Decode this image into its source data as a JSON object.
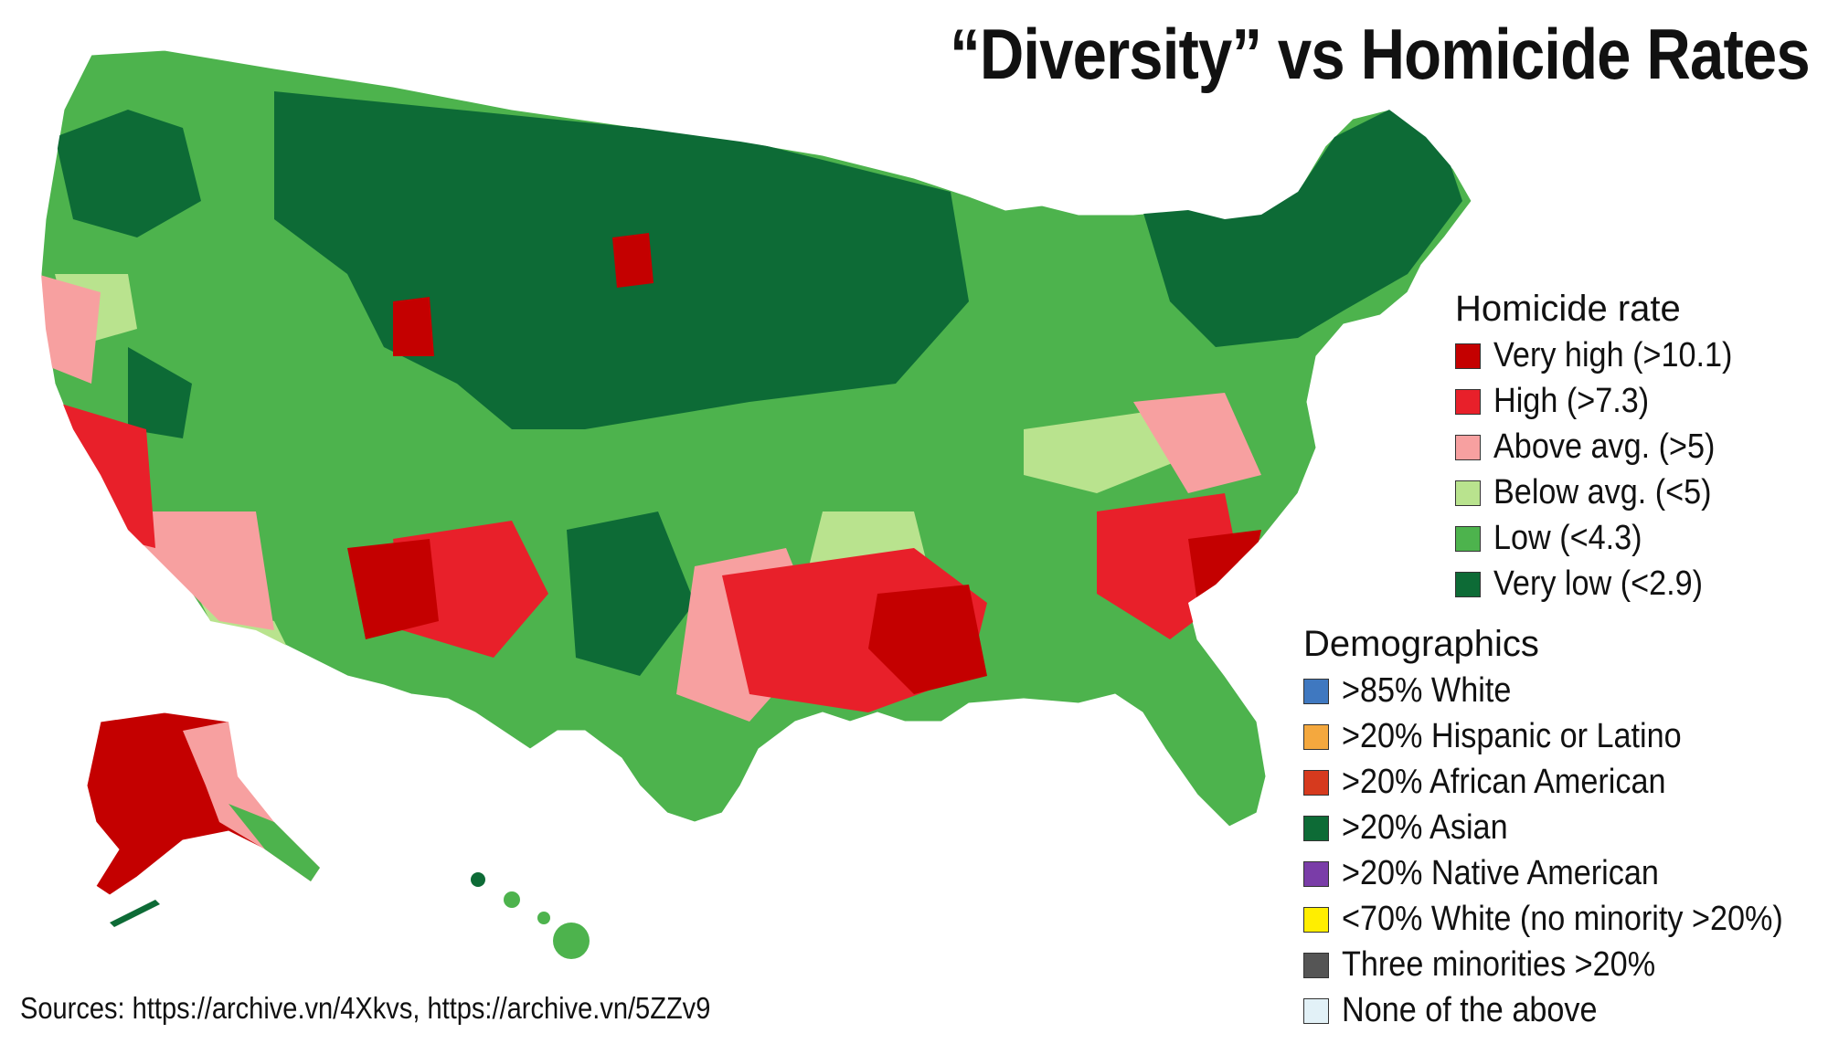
{
  "title": "“Diversity” vs Homicide Rates",
  "homicide_legend": {
    "title": "Homicide rate",
    "items": [
      {
        "label": "Very high (>10.1)",
        "color": "#c40000"
      },
      {
        "label": "High (>7.3)",
        "color": "#e8202a"
      },
      {
        "label": "Above avg. (>5)",
        "color": "#f7a0a0"
      },
      {
        "label": "Below avg. (<5)",
        "color": "#b9e38e"
      },
      {
        "label": "Low (<4.3)",
        "color": "#4db34d"
      },
      {
        "label": "Very low (<2.9)",
        "color": "#0d6b36"
      }
    ]
  },
  "demographics_legend": {
    "title": "Demographics",
    "items": [
      {
        "label": ">85% White",
        "color": "#3f78c0"
      },
      {
        "label": ">20% Hispanic or Latino",
        "color": "#f4a83e"
      },
      {
        "label": ">20% African American",
        "color": "#d63a1e"
      },
      {
        "label": ">20% Asian",
        "color": "#0d6b36"
      },
      {
        "label": ">20% Native American",
        "color": "#7a3da8"
      },
      {
        "label": "<70% White (no minority >20%)",
        "color": "#ffee00"
      },
      {
        "label": "Three minorities >20%",
        "color": "#555555"
      },
      {
        "label": "None of the above",
        "color": "#e2f1f7"
      }
    ]
  },
  "sources": "Sources: https://archive.vn/4Xkvs, https://archive.vn/5ZZv9"
}
